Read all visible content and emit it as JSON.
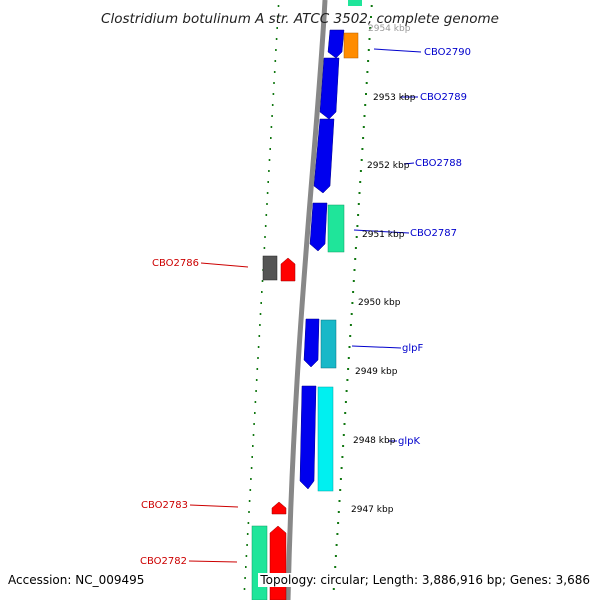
{
  "header": {
    "title": "Clostridium botulinum A str. ATCC 3502, complete genome"
  },
  "footer": {
    "accession": "Accession: NC_009495",
    "topology": "Topology: circular; Length: 3,886,916 bp; Genes: 3,686"
  },
  "colors": {
    "forward_cds": "#0000ee",
    "reverse_cds": "#ff0000",
    "forward_label": "#0000cc",
    "reverse_label": "#cc0000",
    "tick_dots": "#117711",
    "backbone": "#888888",
    "gray_feature": "#555555",
    "orange_feature": "#ff8c00",
    "green_feature": "#1fe59a",
    "cyan_feature": "#18b8c8",
    "light_cyan_feature": "#00f0f0"
  },
  "ruler": {
    "unit": "kbp",
    "ticks": [
      "2954 kbp",
      "2953 kbp",
      "2952 kbp",
      "2951 kbp",
      "2950 kbp",
      "2949 kbp",
      "2948 kbp",
      "2947 kbp"
    ]
  },
  "gene_labels": {
    "forward": [
      "CBO2790",
      "CBO2789",
      "CBO2788",
      "CBO2787",
      "glpF",
      "glpK"
    ],
    "reverse": [
      "CBO2786",
      "CBO2783",
      "CBO2782"
    ]
  }
}
